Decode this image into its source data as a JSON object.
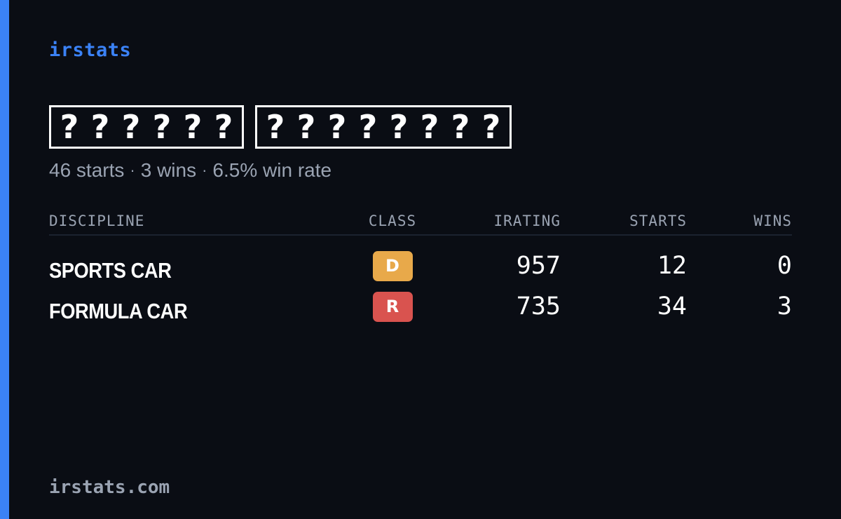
{
  "brand": "irstats",
  "driver_name": {
    "first": [
      "?",
      "?",
      "?",
      "?",
      "?",
      "?"
    ],
    "last": [
      "?",
      "?",
      "?",
      "?",
      "?",
      "?",
      "?",
      "?"
    ]
  },
  "summary": {
    "starts": "46 starts",
    "wins": "3 wins",
    "win_rate": "6.5% win rate",
    "separator": "·"
  },
  "table": {
    "headers": {
      "discipline": "DISCIPLINE",
      "class": "CLASS",
      "irating": "IRATING",
      "starts": "STARTS",
      "wins": "WINS"
    },
    "rows": [
      {
        "discipline": "SPORTS CAR",
        "class": "D",
        "class_color": "#e8a94a",
        "irating": "957",
        "starts": "12",
        "wins": "0"
      },
      {
        "discipline": "FORMULA CAR",
        "class": "R",
        "class_color": "#d9534f",
        "irating": "735",
        "starts": "34",
        "wins": "3"
      }
    ]
  },
  "footer": "irstats.com",
  "colors": {
    "accent": "#3b82f6",
    "background": "#0a0d14",
    "muted": "#9aa3b2"
  }
}
